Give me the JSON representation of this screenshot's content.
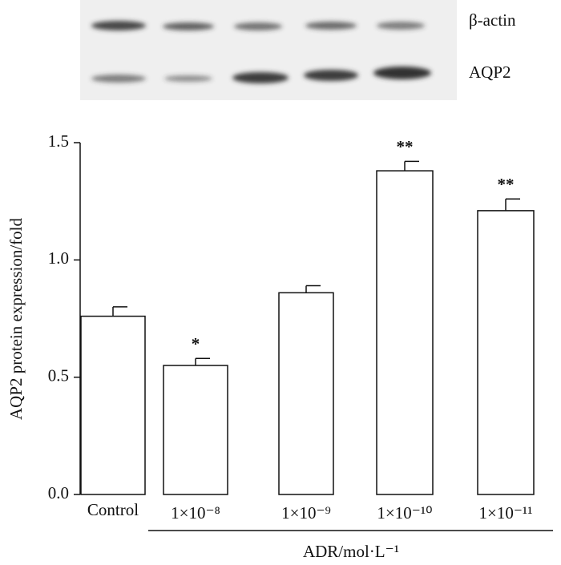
{
  "blot": {
    "labels": [
      "β-actin",
      "AQP2"
    ]
  },
  "chart_data": {
    "type": "bar",
    "categories": [
      "Control",
      "1×10⁻⁸",
      "1×10⁻⁹",
      "1×10⁻¹⁰",
      "1×10⁻¹¹"
    ],
    "values": [
      0.76,
      0.55,
      0.86,
      1.38,
      1.21
    ],
    "errors": [
      0.04,
      0.03,
      0.03,
      0.04,
      0.05
    ],
    "annotations": [
      null,
      "*",
      null,
      "**",
      "**"
    ],
    "color": "#ffffff",
    "y_label": "AQP2 protein expression/fold",
    "x_label": "ADR/mol·L⁻¹",
    "ylim": [
      0,
      1.5
    ],
    "yticks": [
      {
        "value": 0,
        "label": "0.0"
      },
      0.5,
      {
        "value": 1,
        "label": "1.0"
      },
      1.5
    ]
  }
}
